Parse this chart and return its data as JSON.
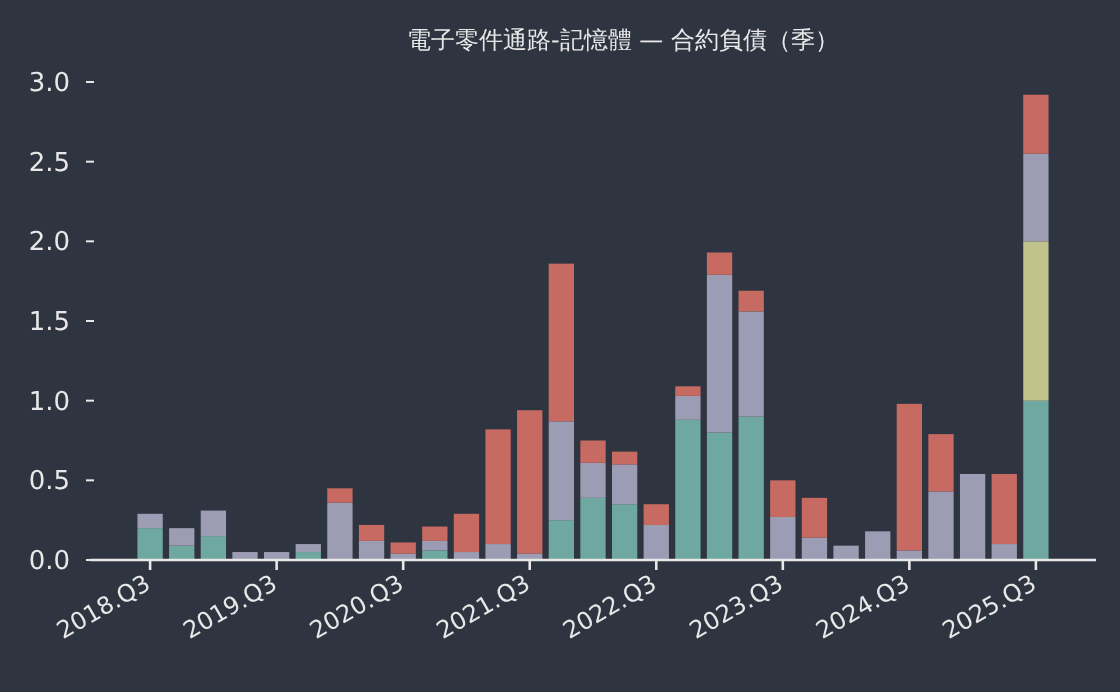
{
  "chart_data": {
    "type": "bar",
    "stacked": true,
    "title": "電子零件通路-記憶體 — 合約負債（季）",
    "categories": [
      "2018.Q3",
      null,
      null,
      null,
      "2019.Q3",
      null,
      null,
      null,
      "2020.Q3",
      null,
      null,
      null,
      "2021.Q3",
      null,
      null,
      null,
      "2022.Q3",
      null,
      null,
      null,
      "2023.Q3",
      null,
      null,
      null,
      "2024.Q3",
      null,
      null,
      null,
      "2025.Q3"
    ],
    "series": [
      {
        "color": "#6fa8a0",
        "values": [
          0.2,
          0.09,
          0.15,
          0,
          0,
          0.05,
          0,
          0,
          0,
          0.06,
          0,
          0,
          0,
          0.25,
          0.39,
          0.35,
          0,
          0.88,
          0.8,
          0.9,
          0,
          0,
          0,
          0,
          0,
          0,
          0,
          0,
          1.0
        ]
      },
      {
        "color": "#c0c48c",
        "values": [
          0,
          0,
          0,
          0,
          0,
          0,
          0,
          0,
          0,
          0,
          0,
          0,
          0,
          0,
          0,
          0,
          0,
          0,
          0,
          0,
          0,
          0,
          0,
          0,
          0,
          0,
          0,
          0,
          1.0
        ]
      },
      {
        "color": "#9c9cb4",
        "values": [
          0.09,
          0.11,
          0.16,
          0.05,
          0.05,
          0.05,
          0.36,
          0.12,
          0.04,
          0.06,
          0.05,
          0.1,
          0.04,
          0.62,
          0.22,
          0.25,
          0.22,
          0.15,
          0.99,
          0.66,
          0.27,
          0.14,
          0.09,
          0.18,
          0.06,
          0.43,
          0.54,
          0.1,
          0.55
        ]
      },
      {
        "color": "#c76b62",
        "values": [
          0,
          0,
          0,
          0,
          0,
          0,
          0.09,
          0.1,
          0.07,
          0.09,
          0.24,
          0.72,
          0.9,
          0.99,
          0.14,
          0.08,
          0.13,
          0.06,
          0.14,
          0.13,
          0.23,
          0.25,
          0,
          0,
          0.92,
          0.36,
          0,
          0.44,
          0.37
        ]
      }
    ],
    "ylim": [
      0,
      3.0
    ],
    "yticks": [
      {
        "value": 0,
        "label": "0.0"
      },
      {
        "value": 0.5,
        "label": "0.5"
      },
      {
        "value": 1,
        "label": "1.0"
      },
      {
        "value": 1.5,
        "label": "1.5"
      },
      {
        "value": 2,
        "label": "2.0"
      },
      {
        "value": 2.5,
        "label": "2.5"
      },
      {
        "value": 3,
        "label": "3.0"
      }
    ],
    "grid": false
  }
}
